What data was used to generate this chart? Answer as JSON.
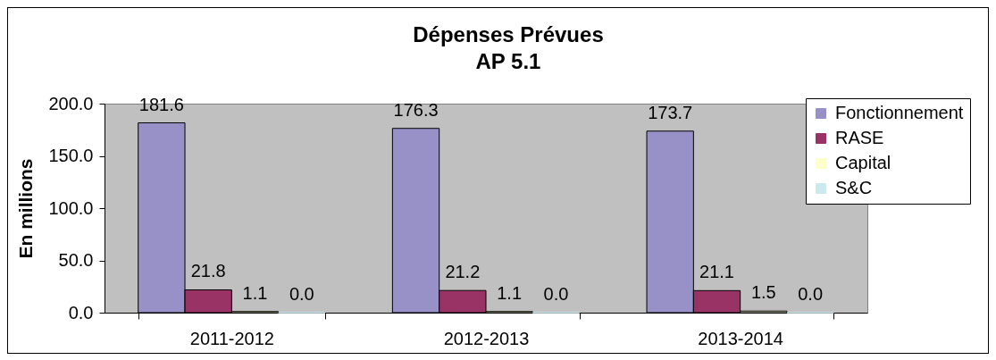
{
  "chart_data": {
    "type": "bar",
    "title": "Dépenses Prévues",
    "subtitle": "AP 5.1",
    "ylabel": "En millions",
    "categories": [
      "2011-2012",
      "2012-2013",
      "2013-2014"
    ],
    "series": [
      {
        "name": "Fonctionnement",
        "color": "#9891c8",
        "values": [
          181.6,
          176.3,
          173.7
        ],
        "value_labels": [
          "181.6",
          "176.3",
          "173.7"
        ]
      },
      {
        "name": "RASE",
        "color": "#993366",
        "values": [
          21.8,
          21.2,
          21.1
        ],
        "value_labels": [
          "21.8",
          "21.2",
          "21.1"
        ]
      },
      {
        "name": "Capital",
        "color": "#ffffcc",
        "values": [
          1.1,
          1.1,
          1.5
        ],
        "value_labels": [
          "1.1",
          "1.1",
          "1.5"
        ]
      },
      {
        "name": "S&C",
        "color": "#cce9f0",
        "values": [
          0,
          0,
          0
        ],
        "value_labels": [
          "0.0",
          "0.0",
          "0.0"
        ]
      }
    ],
    "ylim": [
      0,
      200
    ],
    "yticks": [
      {
        "value": 0,
        "label": "0.0"
      },
      {
        "value": 50,
        "label": "50.0"
      },
      {
        "value": 100,
        "label": "100.0"
      },
      {
        "value": 150,
        "label": "150.0"
      },
      {
        "value": 200,
        "label": "200.0"
      }
    ],
    "legend": "top right"
  }
}
